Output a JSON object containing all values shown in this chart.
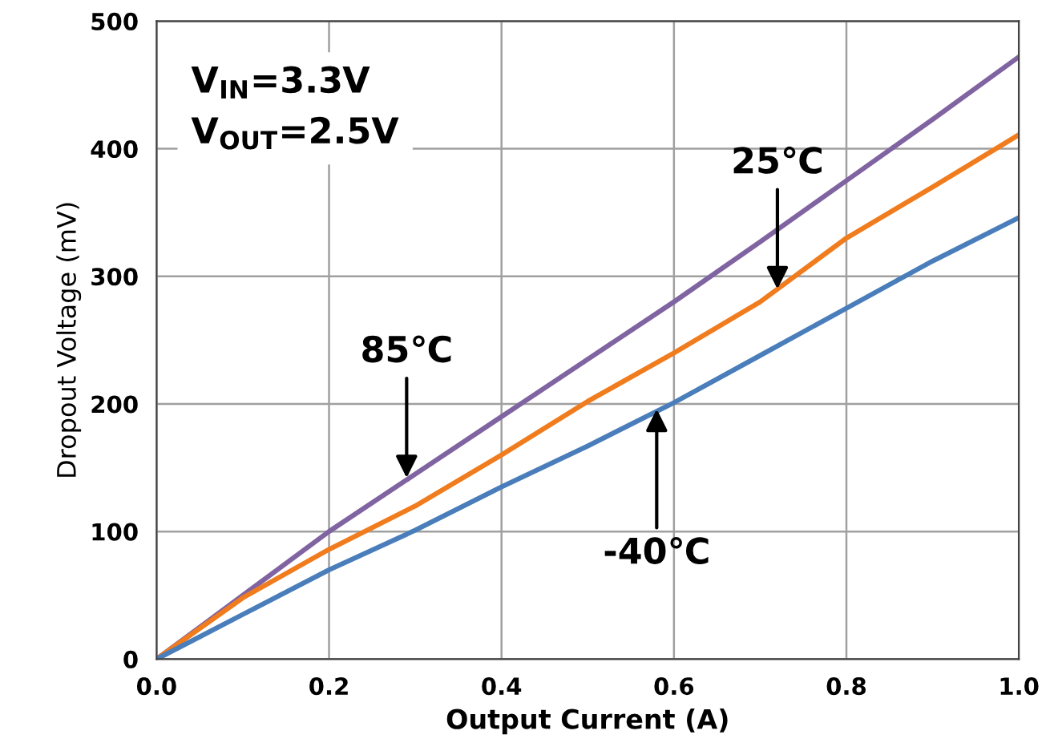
{
  "chart_data": {
    "type": "line",
    "xlabel": "Output Current (A)",
    "ylabel": "Dropout Voltage (mV)",
    "x": [
      0,
      0.1,
      0.2,
      0.3,
      0.4,
      0.5,
      0.6,
      0.7,
      0.8,
      0.9,
      1.0
    ],
    "series": [
      {
        "color": "#8064a2",
        "values": [
          0,
          50,
          100,
          145,
          190,
          235,
          280,
          327,
          375,
          423,
          472
        ]
      },
      {
        "color": "#f07c1e",
        "values": [
          0,
          48,
          86,
          120,
          160,
          202,
          240,
          280,
          330,
          370,
          411
        ]
      },
      {
        "color": "#4a7ebb",
        "values": [
          0,
          35,
          70,
          101,
          135,
          167,
          201,
          238,
          275,
          312,
          346
        ]
      }
    ],
    "annotations": [
      "V$_{IN}$=3.3V\nV$_{OUT}$=2.5V",
      {
        "text": "85℃",
        "x": 0.29,
        "y": 142
      },
      {
        "text": "25℃",
        "x": 0.72,
        "y": 290
      },
      {
        "text": "-40℃",
        "x": 0.58,
        "y": 196
      }
    ],
    "xlim": [
      0,
      1.0
    ],
    "xticks": [
      {
        "value": 0,
        "label": "0.0"
      },
      0.2,
      0.4,
      0.6,
      0.8,
      {
        "value": 1.0,
        "label": "1.0"
      }
    ],
    "ylim": [
      0,
      500
    ],
    "yticks": [
      0,
      100,
      200,
      300,
      400,
      500
    ],
    "grid": true,
    "line_style": "solid"
  }
}
